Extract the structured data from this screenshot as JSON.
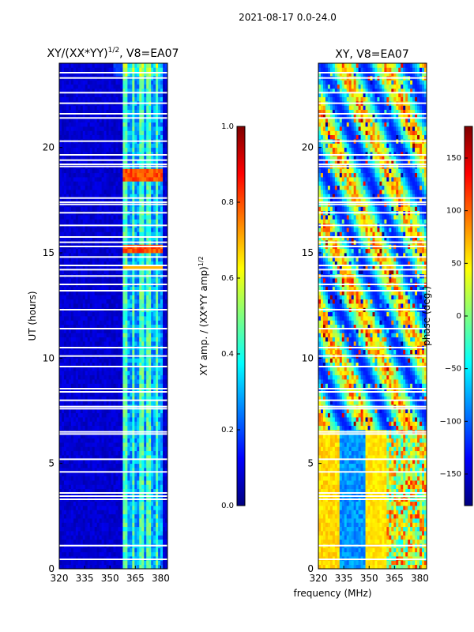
{
  "suptitle": "2021-08-17 0.0-24.0",
  "figure_xlabel": "frequency (MHz)",
  "colors": {
    "low": "#00007f",
    "mid": "#7fff7f",
    "high": "#7f0000",
    "gap": "#ffffff"
  },
  "chart_data": [
    {
      "type": "heatmap",
      "title_main": "XY/(XX*YY)",
      "title_exp": "1/2",
      "title_suffix": ", V8=EA07",
      "xlabel": "",
      "ylabel": "UT (hours)",
      "xlim": [
        320,
        384
      ],
      "ylim": [
        0,
        24
      ],
      "xticks": [
        320,
        335,
        350,
        365,
        380
      ],
      "xtick_labels": [
        "320",
        "335",
        "350",
        "365",
        "380"
      ],
      "yticks": [
        0,
        5,
        10,
        15,
        20
      ],
      "ytick_labels": [
        "0",
        "5",
        "10",
        "15",
        "20"
      ],
      "colormap": "jet",
      "clim": [
        0.0,
        1.0
      ],
      "colorbar": {
        "label": "XY amp. / (XX*YY amp)",
        "label_exp": "1/2",
        "ticks": [
          0.0,
          0.2,
          0.4,
          0.6,
          0.8,
          1.0
        ],
        "tick_labels": [
          "0.0",
          "0.2",
          "0.4",
          "0.6",
          "0.8",
          "1.0"
        ]
      }
    },
    {
      "type": "heatmap",
      "title": "XY, V8=EA07",
      "xlabel": "frequency (MHz)",
      "ylabel": "",
      "xlim": [
        320,
        384
      ],
      "ylim": [
        0,
        24
      ],
      "xticks": [
        320,
        335,
        350,
        365,
        380
      ],
      "xtick_labels": [
        "320",
        "335",
        "350",
        "365",
        "380"
      ],
      "yticks": [
        0,
        5,
        10,
        15,
        20
      ],
      "ytick_labels": [
        "0",
        "5",
        "10",
        "15",
        "20"
      ],
      "colormap": "jet",
      "clim": [
        -180,
        180
      ],
      "colorbar": {
        "label": "phase (deg.)",
        "ticks": [
          -150,
          -100,
          -50,
          0,
          50,
          100,
          150
        ],
        "tick_labels": [
          "−150",
          "−100",
          "−50",
          "0",
          "50",
          "100",
          "150"
        ]
      }
    }
  ]
}
